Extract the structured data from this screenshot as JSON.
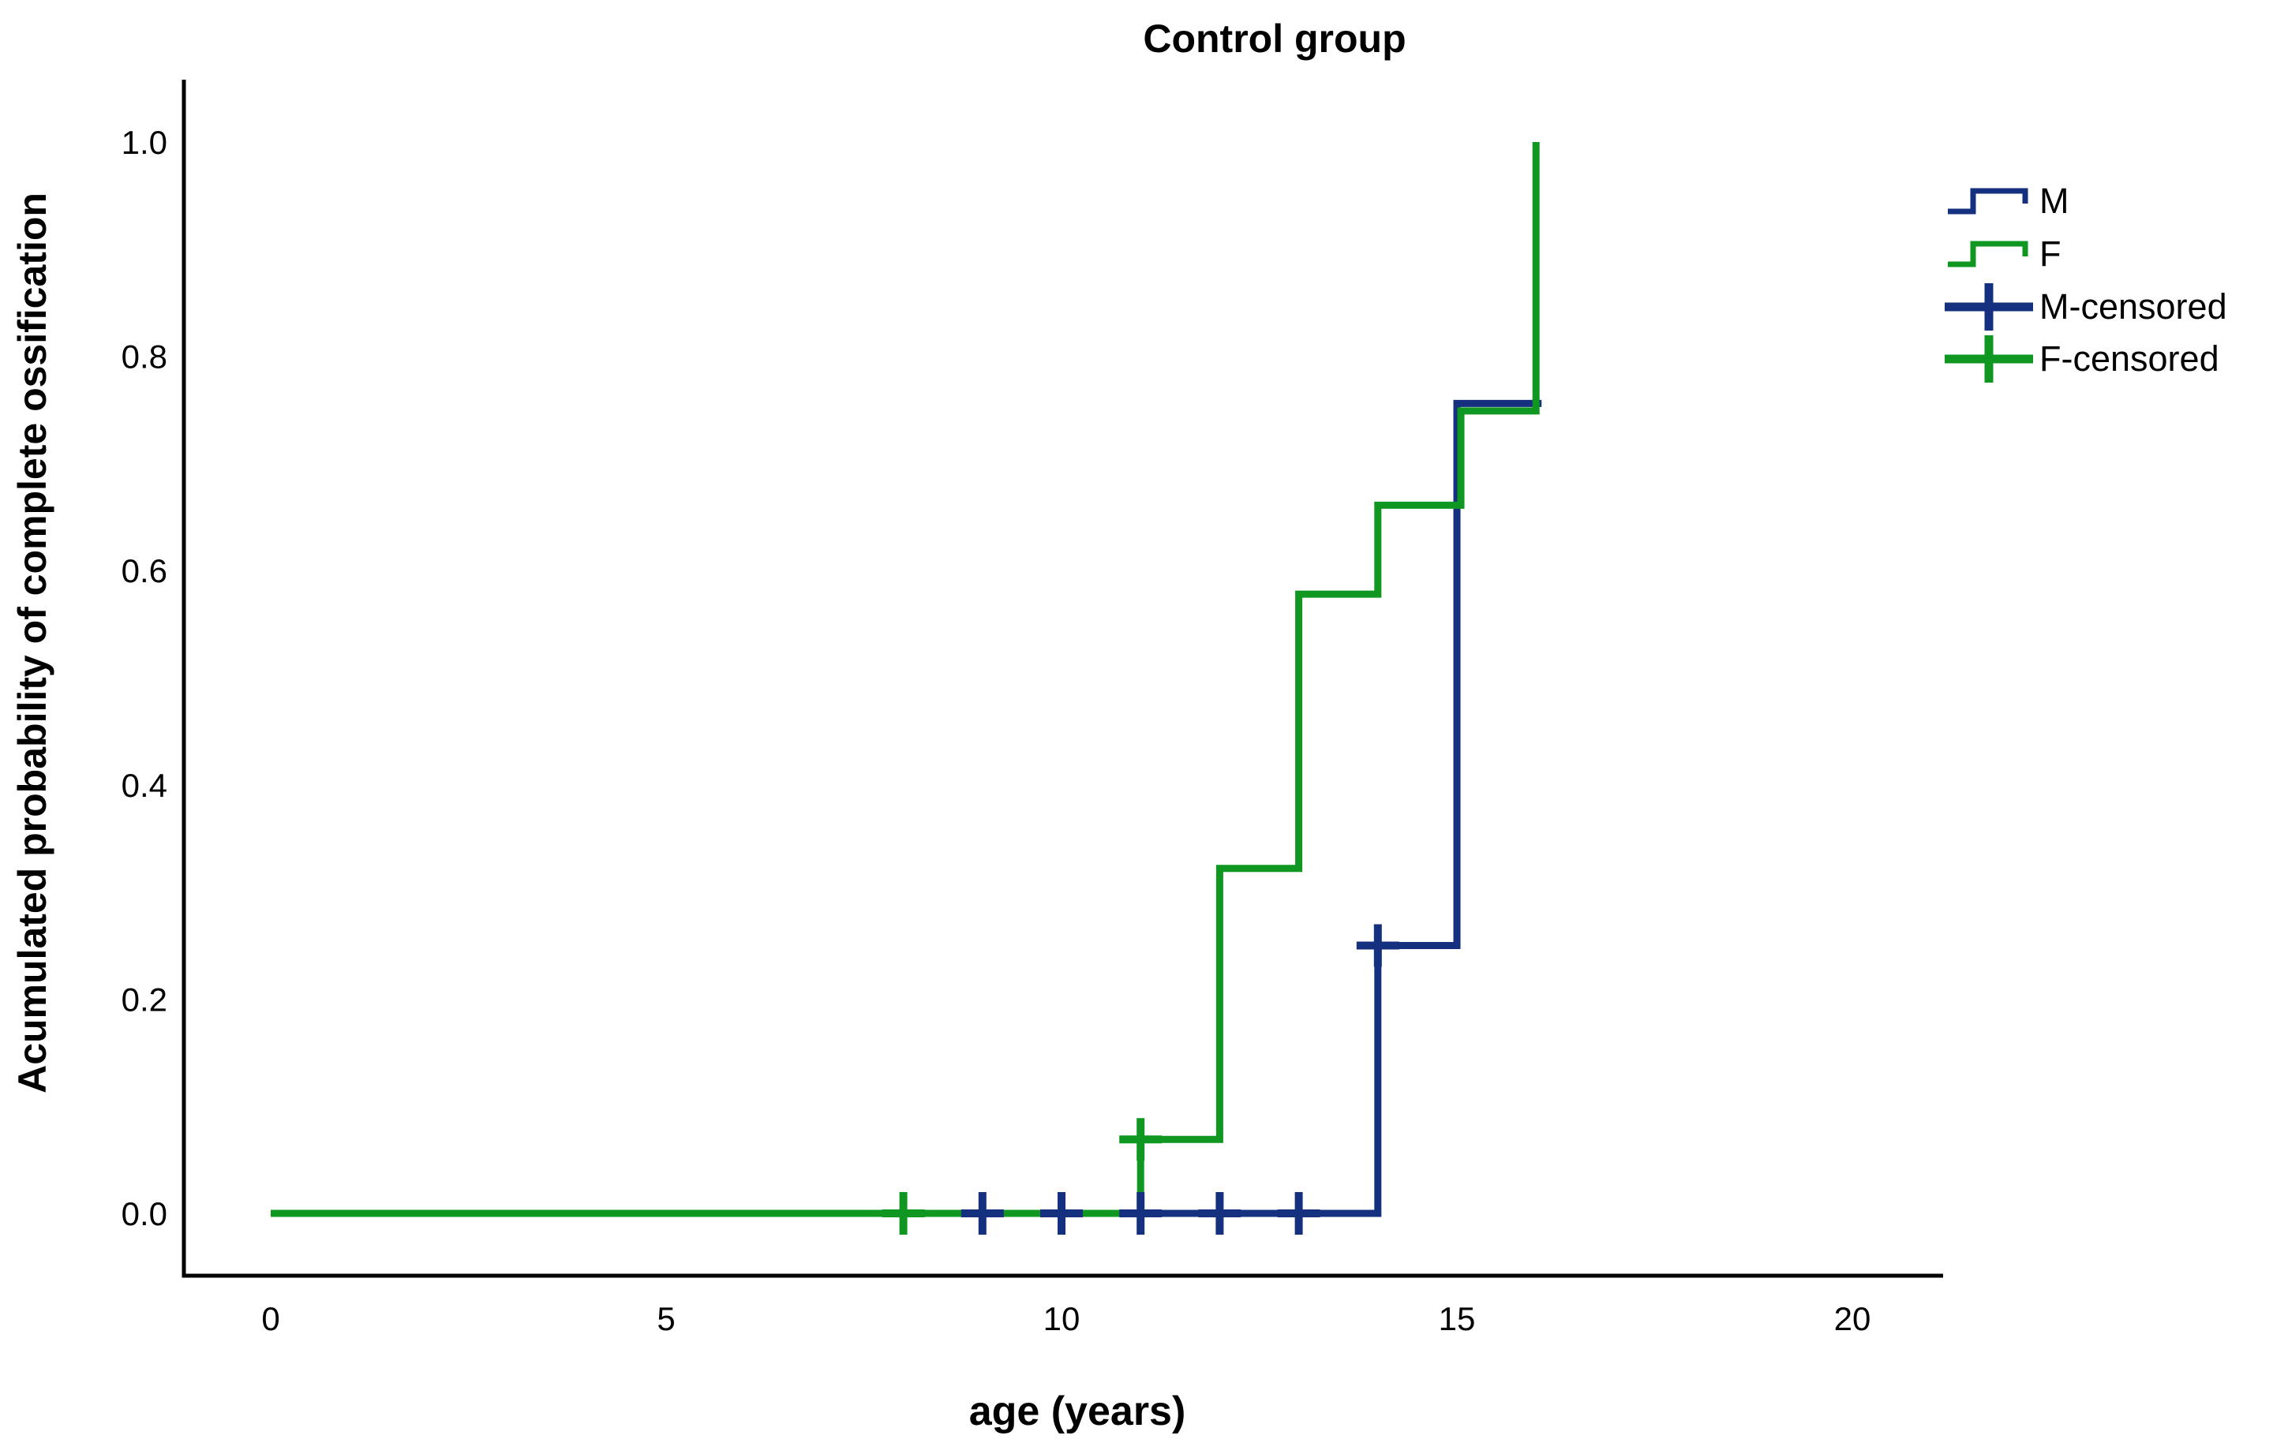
{
  "title": "Control group",
  "colors": {
    "m": "#14307e",
    "f": "#0f9722",
    "axis": "#000000",
    "text": "#000000",
    "background": "#ffffff"
  },
  "axes": {
    "xlabel": "age (years)",
    "ylabel": "Acumulated probability of complete ossification",
    "x_ticks": [
      {
        "value": 0,
        "label": "0"
      },
      {
        "value": 5,
        "label": "5"
      },
      {
        "value": 10,
        "label": "10"
      },
      {
        "value": 15,
        "label": "15"
      },
      {
        "value": 20,
        "label": "20"
      }
    ],
    "y_ticks": [
      {
        "value": 0.0,
        "label": "0.0"
      },
      {
        "value": 0.2,
        "label": "0.2"
      },
      {
        "value": 0.4,
        "label": "0.4"
      },
      {
        "value": 0.6,
        "label": "0.6"
      },
      {
        "value": 0.8,
        "label": "0.8"
      },
      {
        "value": 1.0,
        "label": "1.0"
      }
    ]
  },
  "legend": [
    {
      "label": "M",
      "series": "m",
      "type": "step-line"
    },
    {
      "label": "F",
      "series": "f",
      "type": "step-line"
    },
    {
      "label": "M-censored",
      "series": "m",
      "type": "plus"
    },
    {
      "label": "F-censored",
      "series": "f",
      "type": "plus"
    }
  ],
  "chart_data": {
    "type": "line",
    "subtype": "kaplan-meier-cumulative-step",
    "title": "Control group",
    "xlabel": "age (years)",
    "ylabel": "Acumulated probability of complete ossification",
    "xlim": [
      0,
      21
    ],
    "ylim": [
      0.0,
      1.0
    ],
    "grid": false,
    "legend_position": "upper right",
    "series": [
      {
        "name": "M",
        "color_key": "m",
        "step_events": [
          {
            "x": 14,
            "y": 0.25
          },
          {
            "x": 15,
            "y": 0.75
          }
        ],
        "points": [
          [
            0,
            0
          ],
          [
            14,
            0
          ],
          [
            14,
            0.25
          ],
          [
            15,
            0.25
          ],
          [
            15,
            0.756
          ],
          [
            16.07,
            0.756
          ]
        ],
        "censored": [
          [
            9,
            0
          ],
          [
            10,
            0
          ],
          [
            11,
            0
          ],
          [
            12,
            0
          ],
          [
            13,
            0
          ],
          [
            14,
            0.25
          ]
        ]
      },
      {
        "name": "F",
        "color_key": "f",
        "step_events": [
          {
            "x": 11,
            "y": 0.07
          },
          {
            "x": 12,
            "y": 0.32
          },
          {
            "x": 13,
            "y": 0.58
          },
          {
            "x": 14,
            "y": 0.66
          },
          {
            "x": 15,
            "y": 0.75
          },
          {
            "x": 16,
            "y": 1.0
          }
        ],
        "points": [
          [
            0,
            0
          ],
          [
            11,
            0
          ],
          [
            11,
            0.069
          ],
          [
            12,
            0.069
          ],
          [
            12,
            0.322
          ],
          [
            13,
            0.322
          ],
          [
            13,
            0.578
          ],
          [
            14,
            0.578
          ],
          [
            14,
            0.661
          ],
          [
            15.05,
            0.661
          ],
          [
            15.05,
            0.749
          ],
          [
            16,
            0.749
          ],
          [
            16,
            1.0
          ]
        ],
        "censored": [
          [
            8,
            0
          ],
          [
            11,
            0.069
          ]
        ]
      }
    ]
  }
}
